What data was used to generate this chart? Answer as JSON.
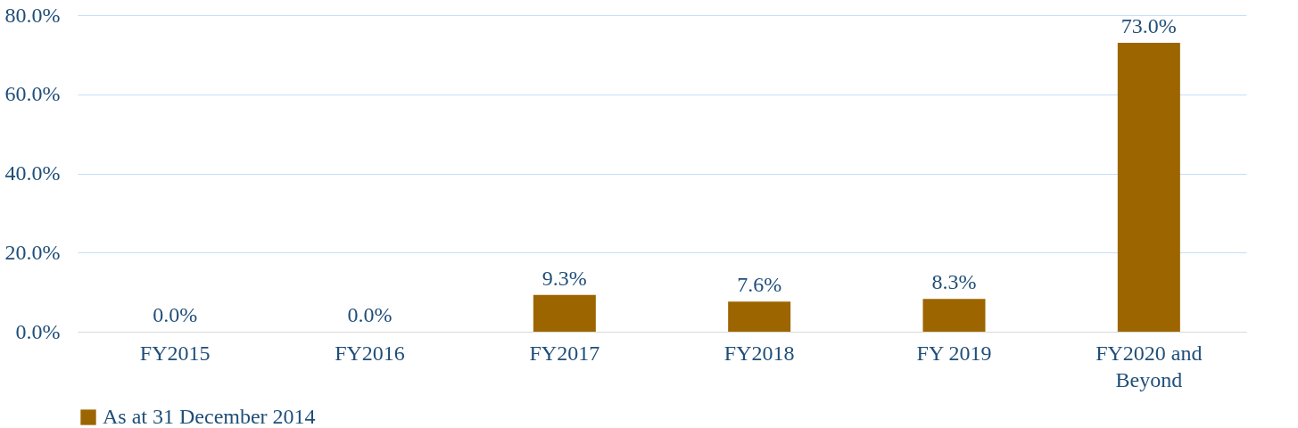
{
  "chart_data": {
    "type": "bar",
    "categories": [
      "FY2015",
      "FY2016",
      "FY2017",
      "FY2018",
      "FY 2019",
      "FY2020 and Beyond"
    ],
    "series": [
      {
        "name": "As at 31 December 2014",
        "color": "#9c6500",
        "values": [
          0.0,
          0.0,
          9.3,
          7.6,
          8.3,
          73.0
        ],
        "value_labels": [
          "0.0%",
          "0.0%",
          "9.3%",
          "7.6%",
          "8.3%",
          "73.0%"
        ]
      }
    ],
    "ylim": [
      0,
      80
    ],
    "yticks": [
      {
        "value": 0,
        "label": "0.0%"
      },
      {
        "value": 20,
        "label": "20.0%"
      },
      {
        "value": 40,
        "label": "40.0%"
      },
      {
        "value": 60,
        "label": "60.0%"
      },
      {
        "value": 80,
        "label": "80.0%"
      }
    ],
    "grid": "y",
    "legend": "bottom"
  }
}
